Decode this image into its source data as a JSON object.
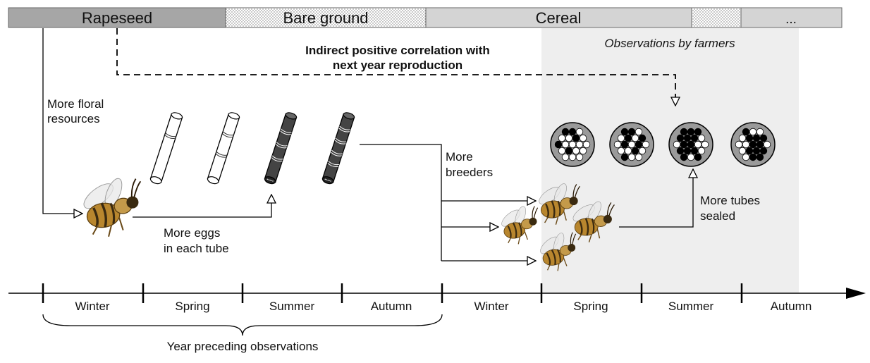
{
  "crops": [
    {
      "label": "Rapeseed",
      "pattern": "dark"
    },
    {
      "label": "Bare ground",
      "pattern": "dots"
    },
    {
      "label": "Cereal",
      "pattern": "light"
    },
    {
      "label": "",
      "pattern": "dots"
    },
    {
      "label": "...",
      "pattern": "light"
    }
  ],
  "labels": {
    "observations": "Observations by farmers",
    "correlation_line1": "Indirect positive correlation with",
    "correlation_line2": "next year reproduction",
    "floral_line1": "More floral",
    "floral_line2": "resources",
    "eggs_line1": "More eggs",
    "eggs_line2": "in each tube",
    "breeders_line1": "More",
    "breeders_line2": "breeders",
    "sealed_line1": "More tubes",
    "sealed_line2": "sealed",
    "year_preceding": "Year preceding observations"
  },
  "seasons": [
    "Winter",
    "Spring",
    "Summer",
    "Autumn",
    "Winter",
    "Spring",
    "Summer",
    "Autumn"
  ],
  "colors": {
    "crop_dark": "#a6a6a6",
    "crop_light": "#d4d4d4",
    "observation_zone": "#eeeeee",
    "tube_filled": "#444444",
    "bee_body": "#b8862e",
    "bee_stripe": "#3a2a10"
  },
  "icons": [
    "bee-icon",
    "nest-tube-icon",
    "tube-bundle-icon"
  ]
}
